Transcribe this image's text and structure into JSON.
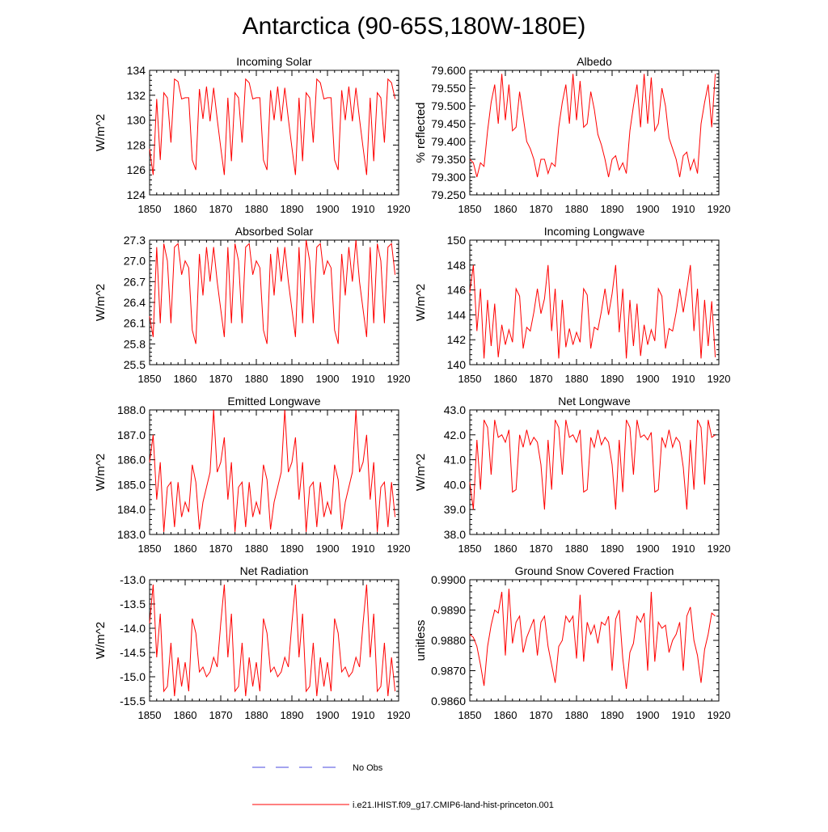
{
  "title": "Antarctica (90-65S,180W-180E)",
  "colors": {
    "model": "#ff0000",
    "obs": "#4a4adf",
    "axis": "#000000"
  },
  "legend": {
    "obs_label": "No Obs",
    "model_label": "i.e21.IHIST.f09_g17.CMIP6-land-hist-princeton.001"
  },
  "chart_data": [
    {
      "type": "line",
      "title": "Incoming Solar",
      "ylabel": "W/m^2",
      "xlim": [
        1850,
        1920
      ],
      "ylim": [
        124,
        134
      ],
      "xticks": [
        1850,
        1860,
        1870,
        1880,
        1890,
        1900,
        1910,
        1920
      ],
      "yticks": [
        "124",
        "126",
        "128",
        "130",
        "132",
        "134"
      ],
      "series": [
        {
          "x0": 1850,
          "values": [
            127.7,
            125.6,
            131.7,
            126.8,
            132.2,
            131.8,
            128.2,
            133.3,
            133.1,
            131.7,
            131.8,
            131.8,
            126.8,
            126.0,
            132.5,
            130.1,
            132.7,
            129.9,
            132.6,
            130.1,
            127.8,
            125.6,
            131.8,
            126.7,
            132.2,
            131.8,
            128.2,
            133.3,
            133.0,
            131.7,
            131.8,
            131.8,
            126.8,
            126.0,
            132.4,
            130.0,
            132.7,
            129.9,
            132.6,
            130.1,
            127.8,
            125.6,
            131.8,
            126.7,
            132.2,
            131.8,
            128.2,
            133.3,
            133.0,
            131.7,
            131.8,
            131.8,
            126.8,
            126.0,
            132.4,
            130.0,
            132.7,
            129.9,
            132.6,
            130.1,
            127.8,
            125.6,
            131.8,
            126.7,
            132.2,
            131.8,
            128.2,
            133.3,
            133.0,
            131.7
          ]
        }
      ]
    },
    {
      "type": "line",
      "title": "Albedo",
      "ylabel": "% reflected",
      "xlim": [
        1850,
        1920
      ],
      "ylim": [
        79.25,
        79.6
      ],
      "xticks": [
        1850,
        1860,
        1870,
        1880,
        1890,
        1900,
        1910,
        1920
      ],
      "yticks": [
        "79.250",
        "79.300",
        "79.350",
        "79.400",
        "79.450",
        "79.500",
        "79.550",
        "79.600"
      ],
      "series": [
        {
          "x0": 1850,
          "values": [
            79.35,
            79.34,
            79.3,
            79.34,
            79.33,
            79.43,
            79.51,
            79.56,
            79.45,
            79.59,
            79.46,
            79.56,
            79.43,
            79.44,
            79.54,
            79.47,
            79.4,
            79.38,
            79.35,
            79.3,
            79.35,
            79.35,
            79.31,
            79.34,
            79.33,
            79.44,
            79.51,
            79.56,
            79.45,
            79.59,
            79.46,
            79.57,
            79.44,
            79.45,
            79.54,
            79.49,
            79.42,
            79.39,
            79.35,
            79.3,
            79.35,
            79.36,
            79.32,
            79.34,
            79.31,
            79.43,
            79.5,
            79.56,
            79.44,
            79.59,
            79.45,
            79.58,
            79.43,
            79.45,
            79.55,
            79.5,
            79.41,
            79.38,
            79.35,
            79.3,
            79.36,
            79.37,
            79.32,
            79.35,
            79.31,
            79.45,
            79.51,
            79.56,
            79.44,
            79.59
          ]
        }
      ]
    },
    {
      "type": "line",
      "title": "Absorbed Solar",
      "ylabel": "W/m^2",
      "xlim": [
        1850,
        1920
      ],
      "ylim": [
        25.5,
        27.3
      ],
      "xticks": [
        1850,
        1860,
        1870,
        1880,
        1890,
        1900,
        1910,
        1920
      ],
      "yticks": [
        "25.5",
        "25.8",
        "26.1",
        "26.4",
        "26.7",
        "27.0",
        "27.3"
      ],
      "series": [
        {
          "x0": 1850,
          "values": [
            26.2,
            25.9,
            27.2,
            26.1,
            27.25,
            27.0,
            26.1,
            27.2,
            27.25,
            26.8,
            27.0,
            26.9,
            26.0,
            25.8,
            27.1,
            26.5,
            27.2,
            26.7,
            27.2,
            26.7,
            26.3,
            25.9,
            27.2,
            26.1,
            27.25,
            27.0,
            26.1,
            27.2,
            27.25,
            26.8,
            27.0,
            26.9,
            26.0,
            25.8,
            27.1,
            26.5,
            27.2,
            26.7,
            27.2,
            26.7,
            26.3,
            25.9,
            27.2,
            26.1,
            27.3,
            27.0,
            26.1,
            27.2,
            27.25,
            26.8,
            27.0,
            26.9,
            26.0,
            25.8,
            27.1,
            26.5,
            27.2,
            26.7,
            27.3,
            26.7,
            26.3,
            25.9,
            27.2,
            26.1,
            27.25,
            27.0,
            26.1,
            27.2,
            27.25,
            26.8
          ]
        }
      ]
    },
    {
      "type": "line",
      "title": "Incoming Longwave",
      "ylabel": "W/m^2",
      "xlim": [
        1850,
        1920
      ],
      "ylim": [
        140,
        150
      ],
      "xticks": [
        1850,
        1860,
        1870,
        1880,
        1890,
        1900,
        1910,
        1920
      ],
      "yticks": [
        "140",
        "142",
        "144",
        "146",
        "148",
        "150"
      ],
      "series": [
        {
          "x0": 1850,
          "values": [
            145.8,
            148.0,
            142.7,
            146.1,
            140.5,
            145.2,
            141.5,
            144.9,
            140.6,
            143.2,
            141.6,
            142.8,
            141.8,
            146.1,
            145.5,
            141.3,
            143.0,
            142.7,
            144.2,
            146.1,
            144.1,
            145.3,
            148.0,
            142.7,
            146.1,
            140.5,
            145.2,
            141.4,
            142.9,
            141.6,
            142.6,
            141.8,
            146.1,
            145.6,
            141.3,
            143.0,
            142.8,
            144.3,
            146.1,
            144.0,
            145.7,
            148.0,
            142.6,
            146.1,
            140.5,
            145.2,
            141.5,
            144.9,
            140.7,
            143.2,
            141.6,
            142.8,
            141.9,
            146.1,
            145.5,
            141.3,
            142.9,
            142.7,
            144.2,
            146.1,
            144.2,
            146.0,
            148.0,
            142.7,
            146.1,
            140.5,
            145.2,
            141.5,
            145.1,
            140.6
          ]
        }
      ]
    },
    {
      "type": "line",
      "title": "Emitted Longwave",
      "ylabel": "W/m^2",
      "xlim": [
        1850,
        1920
      ],
      "ylim": [
        183,
        188
      ],
      "xticks": [
        1850,
        1860,
        1870,
        1880,
        1890,
        1900,
        1910,
        1920
      ],
      "yticks": [
        "183.0",
        "184.0",
        "185.0",
        "186.0",
        "187.0",
        "188.0"
      ],
      "series": [
        {
          "x0": 1850,
          "values": [
            185.9,
            187.0,
            184.4,
            185.9,
            183.1,
            184.9,
            185.1,
            183.3,
            185.1,
            183.7,
            184.3,
            183.9,
            185.8,
            185.1,
            183.2,
            184.3,
            184.9,
            185.5,
            188.0,
            185.5,
            185.9,
            186.9,
            184.4,
            185.9,
            183.1,
            184.9,
            185.1,
            183.3,
            185.1,
            183.7,
            184.3,
            183.8,
            185.8,
            185.2,
            183.2,
            184.3,
            184.9,
            185.5,
            188.0,
            185.5,
            185.9,
            186.9,
            184.4,
            185.9,
            183.1,
            184.9,
            185.1,
            183.3,
            185.1,
            183.7,
            184.3,
            183.8,
            185.8,
            185.2,
            183.2,
            184.3,
            184.9,
            185.5,
            188.0,
            185.5,
            185.9,
            187.0,
            184.4,
            185.9,
            183.1,
            184.9,
            185.1,
            183.3,
            185.1,
            183.7
          ]
        }
      ]
    },
    {
      "type": "line",
      "title": "Net Longwave",
      "ylabel": "W/m^2",
      "xlim": [
        1850,
        1920
      ],
      "ylim": [
        38,
        43
      ],
      "xticks": [
        1850,
        1860,
        1870,
        1880,
        1890,
        1900,
        1910,
        1920
      ],
      "yticks": [
        "38.0",
        "39.0",
        "40.0",
        "41.0",
        "42.0",
        "43.0"
      ],
      "series": [
        {
          "x0": 1850,
          "values": [
            40.1,
            39.0,
            41.8,
            39.8,
            42.6,
            42.3,
            40.4,
            42.6,
            41.9,
            42.0,
            41.7,
            42.2,
            39.7,
            39.8,
            42.0,
            41.5,
            42.2,
            41.6,
            41.9,
            41.7,
            40.8,
            39.0,
            41.8,
            39.8,
            42.6,
            42.3,
            40.4,
            42.6,
            41.9,
            42.0,
            41.7,
            42.2,
            39.7,
            39.8,
            41.9,
            41.5,
            42.2,
            41.6,
            41.9,
            41.7,
            40.8,
            39.0,
            41.8,
            39.7,
            42.6,
            42.3,
            40.4,
            42.6,
            41.9,
            42.0,
            41.8,
            42.1,
            39.7,
            39.8,
            41.9,
            41.5,
            42.2,
            41.5,
            41.9,
            41.7,
            40.7,
            39.0,
            41.8,
            39.8,
            42.6,
            42.3,
            40.0,
            42.6,
            41.9,
            42.0
          ]
        }
      ]
    },
    {
      "type": "line",
      "title": "Net Radiation",
      "ylabel": "W/m^2",
      "xlim": [
        1850,
        1920
      ],
      "ylim": [
        -15.5,
        -13.0
      ],
      "xticks": [
        1850,
        1860,
        1870,
        1880,
        1890,
        1900,
        1910,
        1920
      ],
      "yticks": [
        "-15.5",
        "-15.0",
        "-14.5",
        "-14.0",
        "-13.5",
        "-13.0"
      ],
      "series": [
        {
          "x0": 1850,
          "values": [
            -13.9,
            -13.1,
            -14.6,
            -13.7,
            -15.3,
            -15.2,
            -14.3,
            -15.4,
            -14.6,
            -15.2,
            -14.7,
            -15.3,
            -13.8,
            -14.1,
            -14.9,
            -14.8,
            -15.0,
            -14.9,
            -14.6,
            -14.8,
            -13.9,
            -13.1,
            -14.6,
            -13.7,
            -15.3,
            -15.2,
            -14.3,
            -15.4,
            -14.6,
            -15.2,
            -14.7,
            -15.3,
            -13.8,
            -14.1,
            -14.9,
            -14.8,
            -15.0,
            -14.9,
            -14.6,
            -14.8,
            -13.9,
            -13.1,
            -14.6,
            -13.7,
            -15.3,
            -15.2,
            -14.3,
            -15.4,
            -14.6,
            -15.2,
            -14.7,
            -15.3,
            -13.8,
            -14.1,
            -14.9,
            -14.8,
            -15.0,
            -14.9,
            -14.6,
            -14.8,
            -13.9,
            -13.1,
            -14.6,
            -13.7,
            -15.3,
            -15.2,
            -14.3,
            -15.4,
            -14.6,
            -15.3
          ]
        }
      ]
    },
    {
      "type": "line",
      "title": "Ground Snow Covered Fraction",
      "ylabel": "unitless",
      "xlim": [
        1850,
        1920
      ],
      "ylim": [
        0.986,
        0.99
      ],
      "xticks": [
        1850,
        1860,
        1870,
        1880,
        1890,
        1900,
        1910,
        1920
      ],
      "yticks": [
        "0.9860",
        "0.9870",
        "0.9880",
        "0.9890",
        "0.9900"
      ],
      "series": [
        {
          "x0": 1850,
          "values": [
            0.9882,
            0.9881,
            0.9878,
            0.9872,
            0.9865,
            0.9878,
            0.9885,
            0.989,
            0.9889,
            0.9896,
            0.9875,
            0.9897,
            0.9879,
            0.9886,
            0.9888,
            0.9876,
            0.9881,
            0.9884,
            0.9887,
            0.9875,
            0.9886,
            0.9888,
            0.9878,
            0.9872,
            0.9866,
            0.9878,
            0.988,
            0.9888,
            0.9886,
            0.9888,
            0.9874,
            0.9895,
            0.9873,
            0.9886,
            0.9882,
            0.9885,
            0.9879,
            0.9886,
            0.9885,
            0.9888,
            0.987,
            0.9887,
            0.989,
            0.9874,
            0.9864,
            0.9876,
            0.9879,
            0.9888,
            0.9886,
            0.9889,
            0.987,
            0.9896,
            0.9873,
            0.9886,
            0.9884,
            0.9885,
            0.9876,
            0.988,
            0.9882,
            0.9886,
            0.987,
            0.9888,
            0.9891,
            0.988,
            0.9875,
            0.9866,
            0.9877,
            0.9882,
            0.9889,
            0.9888
          ]
        }
      ]
    }
  ]
}
